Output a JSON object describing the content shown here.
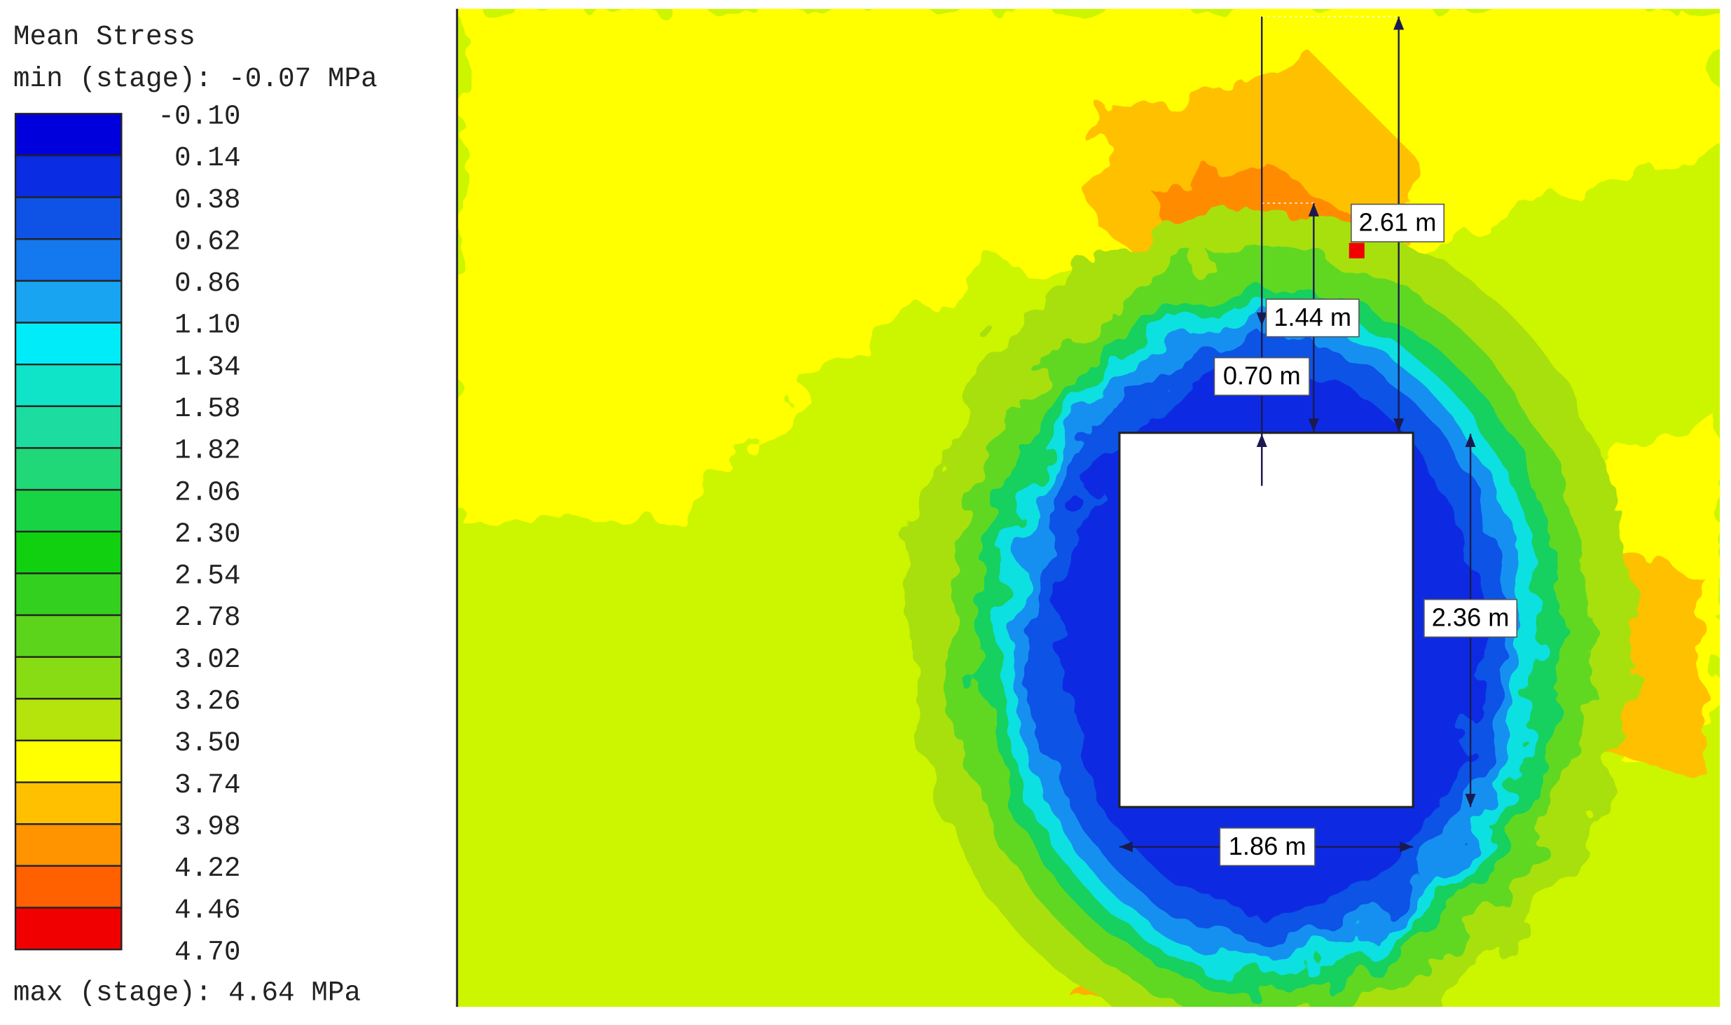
{
  "legend": {
    "title": "Mean Stress",
    "min": "min (stage): -0.07 MPa",
    "max": "max (stage): 4.64 MPa",
    "levels": [
      "-0.10",
      "0.14",
      "0.38",
      "0.62",
      "0.86",
      "1.10",
      "1.34",
      "1.58",
      "1.82",
      "2.06",
      "2.30",
      "2.54",
      "2.78",
      "3.02",
      "3.26",
      "3.50",
      "3.74",
      "3.98",
      "4.22",
      "4.46",
      "4.70"
    ],
    "colors": [
      "#0000dc",
      "#0a2ce2",
      "#0f52e6",
      "#1478ee",
      "#18a4f0",
      "#00ecf8",
      "#10e4c8",
      "#1cdca0",
      "#20d878",
      "#18d444",
      "#10d010",
      "#34d020",
      "#5cd41c",
      "#88dc14",
      "#b4e40c",
      "#ffff00",
      "#ffc000",
      "#ff9400",
      "#ff6000",
      "#f00000"
    ]
  },
  "dimensions": [
    "2.61 m",
    "1.44 m",
    "0.70 m",
    "2.36 m",
    "1.86 m"
  ]
}
